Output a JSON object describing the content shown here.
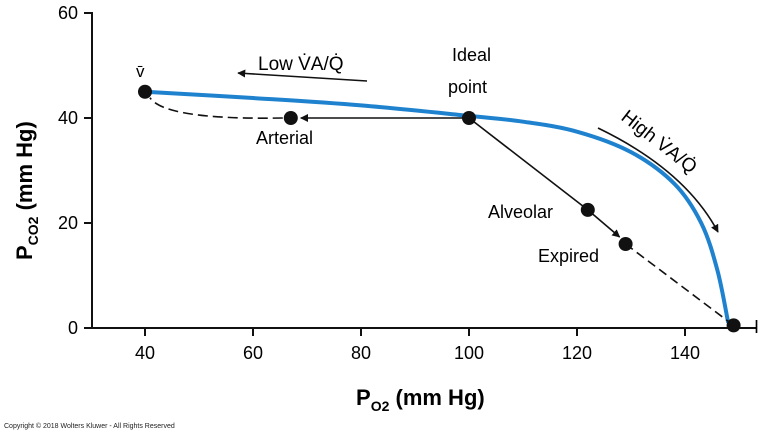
{
  "chart_data": {
    "type": "line",
    "title": "",
    "xlabel": "P",
    "xlabel_sub": "O2",
    "xlabel_unit": "(mm Hg)",
    "ylabel": "P",
    "ylabel_sub": "CO2",
    "ylabel_unit": "(mm Hg)",
    "xlim": [
      30,
      155
    ],
    "ylim": [
      0,
      60
    ],
    "x_ticks": [
      40,
      60,
      80,
      100,
      120,
      140
    ],
    "y_ticks": [
      0,
      20,
      40,
      60
    ],
    "grid": false,
    "series": [
      {
        "color": "#1f82cf",
        "points": [
          [
            40,
            45
          ],
          [
            60,
            43.8
          ],
          [
            80,
            42.4
          ],
          [
            100,
            40.4
          ],
          [
            110,
            39.3
          ],
          [
            120,
            37.4
          ],
          [
            130,
            33.5
          ],
          [
            138,
            27.5
          ],
          [
            143,
            20
          ],
          [
            146,
            11
          ],
          [
            148,
            1
          ]
        ]
      }
    ],
    "points": [
      {
        "label": "v̄",
        "x": 40,
        "y": 45
      },
      {
        "label": "Arterial",
        "x": 67,
        "y": 40
      },
      {
        "label": "Ideal point",
        "x": 100,
        "y": 40
      },
      {
        "label": "Alveolar",
        "x": 122,
        "y": 22.5
      },
      {
        "label": "Expired",
        "x": 129,
        "y": 16
      },
      {
        "label": "I",
        "x": 149,
        "y": 0.5
      }
    ],
    "annotations": {
      "low_va_q": "Low V̇A/Q̇",
      "high_va_q": "High V̇A/Q̇",
      "ideal_line1": "Ideal",
      "ideal_line2": "point",
      "arterial": "Arterial",
      "alveolar": "Alveolar",
      "expired": "Expired",
      "vbar": "v̄",
      "inspired": "I"
    }
  },
  "copyright": "Copyright © 2018 Wolters Kluwer - All Rights Reserved"
}
